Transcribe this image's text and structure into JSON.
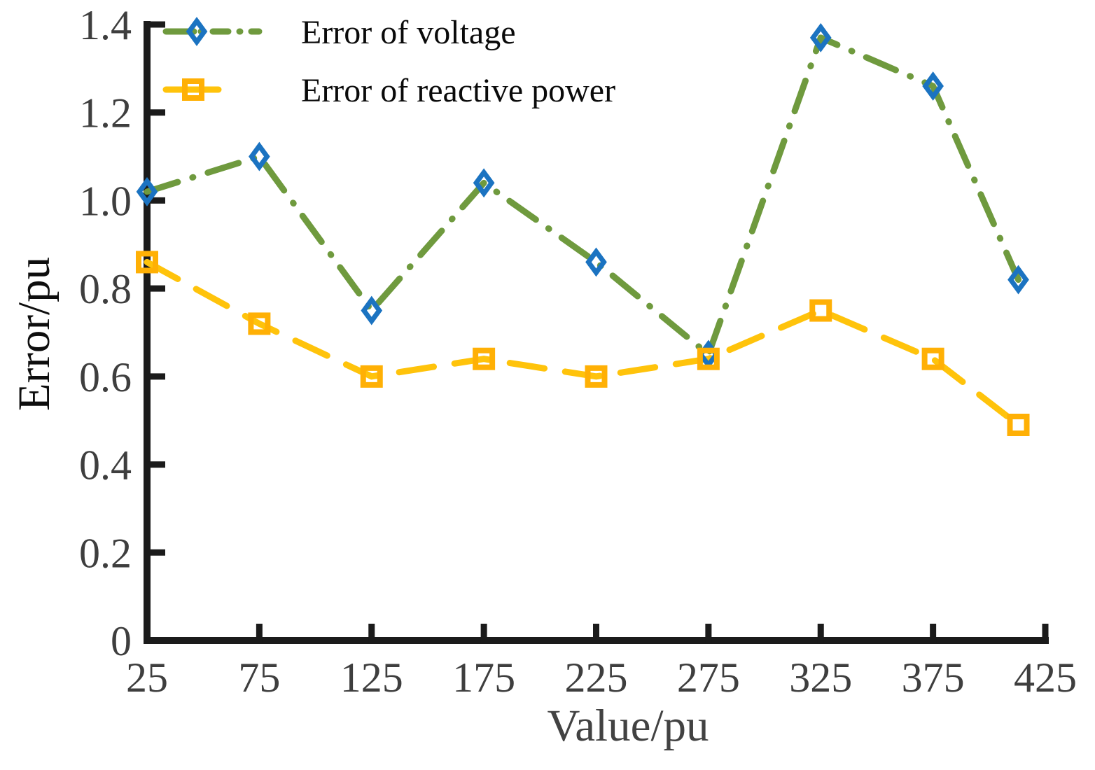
{
  "figure": {
    "background": "#FFFFFF"
  },
  "chart_data": {
    "type": "line",
    "title": "",
    "xlabel": "Value/pu",
    "ylabel": "Error/pu",
    "xlim": [
      25,
      425
    ],
    "ylim": [
      0,
      1.4
    ],
    "grid": false,
    "legend_position": "top-left",
    "x": [
      25,
      75,
      125,
      175,
      225,
      275,
      325,
      375,
      413
    ],
    "series": [
      {
        "name": "Error of voltage",
        "values": [
          1.02,
          1.1,
          0.75,
          1.04,
          0.86,
          0.65,
          1.37,
          1.26,
          0.82
        ],
        "line_color": "#6F9A3E",
        "line_style": "dash-dot",
        "marker": "diamond",
        "marker_color": "#1B73C1"
      },
      {
        "name": "Error of reactive power",
        "values": [
          0.86,
          0.72,
          0.6,
          0.64,
          0.6,
          0.64,
          0.75,
          0.64,
          0.49
        ],
        "line_color": "#FFC30B",
        "line_style": "dashed",
        "marker": "square",
        "marker_color": "#FFB005"
      }
    ],
    "xticks": {
      "values": [
        25,
        75,
        125,
        175,
        225,
        275,
        325,
        375,
        425
      ],
      "labels": [
        "25",
        "75",
        "125",
        "175",
        "225",
        "275",
        "325",
        "375",
        "425"
      ]
    },
    "yticks": {
      "values": [
        0,
        0.2,
        0.4,
        0.6,
        0.8,
        1.0,
        1.2,
        1.4
      ],
      "labels": [
        "0",
        "0.2",
        "0.4",
        "0.6",
        "0.8",
        "1.0",
        "1.2",
        "1.4"
      ]
    },
    "colors": {
      "axis": "#1B1B1B",
      "tick_label": "#3E3E3E",
      "xlabel_text": "#424242",
      "ylabel_text": "#0E0E0E",
      "legend_text": "#0A0A0A"
    }
  }
}
